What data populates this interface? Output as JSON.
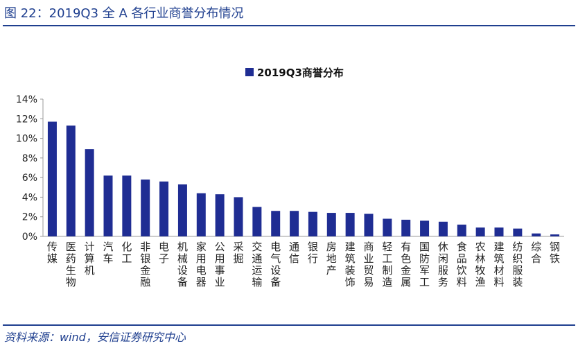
{
  "figure_title": "图 22：2019Q3 全 A 各行业商誉分布情况",
  "source_note": "资料来源：wind，安信证券研究中心",
  "chart_data": {
    "type": "bar",
    "legend": {
      "label": "2019Q3商誉分布",
      "position": "top"
    },
    "y_ticks": [
      "0%",
      "2%",
      "4%",
      "6%",
      "8%",
      "10%",
      "12%",
      "14%"
    ],
    "ylim": [
      0,
      14
    ],
    "y_unit": "%",
    "grid": false,
    "bar_color": "#1f2d93",
    "categories": [
      "传媒",
      "医药生物",
      "计算机",
      "汽车",
      "化工",
      "非银金融",
      "电子",
      "机械设备",
      "家用电器",
      "公用事业",
      "采掘",
      "交通运输",
      "电气设备",
      "通信",
      "银行",
      "房地产",
      "建筑装饰",
      "商业贸易",
      "轻工制造",
      "有色金属",
      "国防军工",
      "休闲服务",
      "食品饮料",
      "农林牧渔",
      "建筑材料",
      "纺织服装",
      "综合",
      "钢铁"
    ],
    "values": [
      11.7,
      11.3,
      8.9,
      6.2,
      6.2,
      5.8,
      5.6,
      5.3,
      4.4,
      4.3,
      4.0,
      3.0,
      2.6,
      2.6,
      2.5,
      2.4,
      2.4,
      2.3,
      1.8,
      1.7,
      1.6,
      1.5,
      1.2,
      0.9,
      0.9,
      0.8,
      0.3,
      0.2
    ]
  }
}
